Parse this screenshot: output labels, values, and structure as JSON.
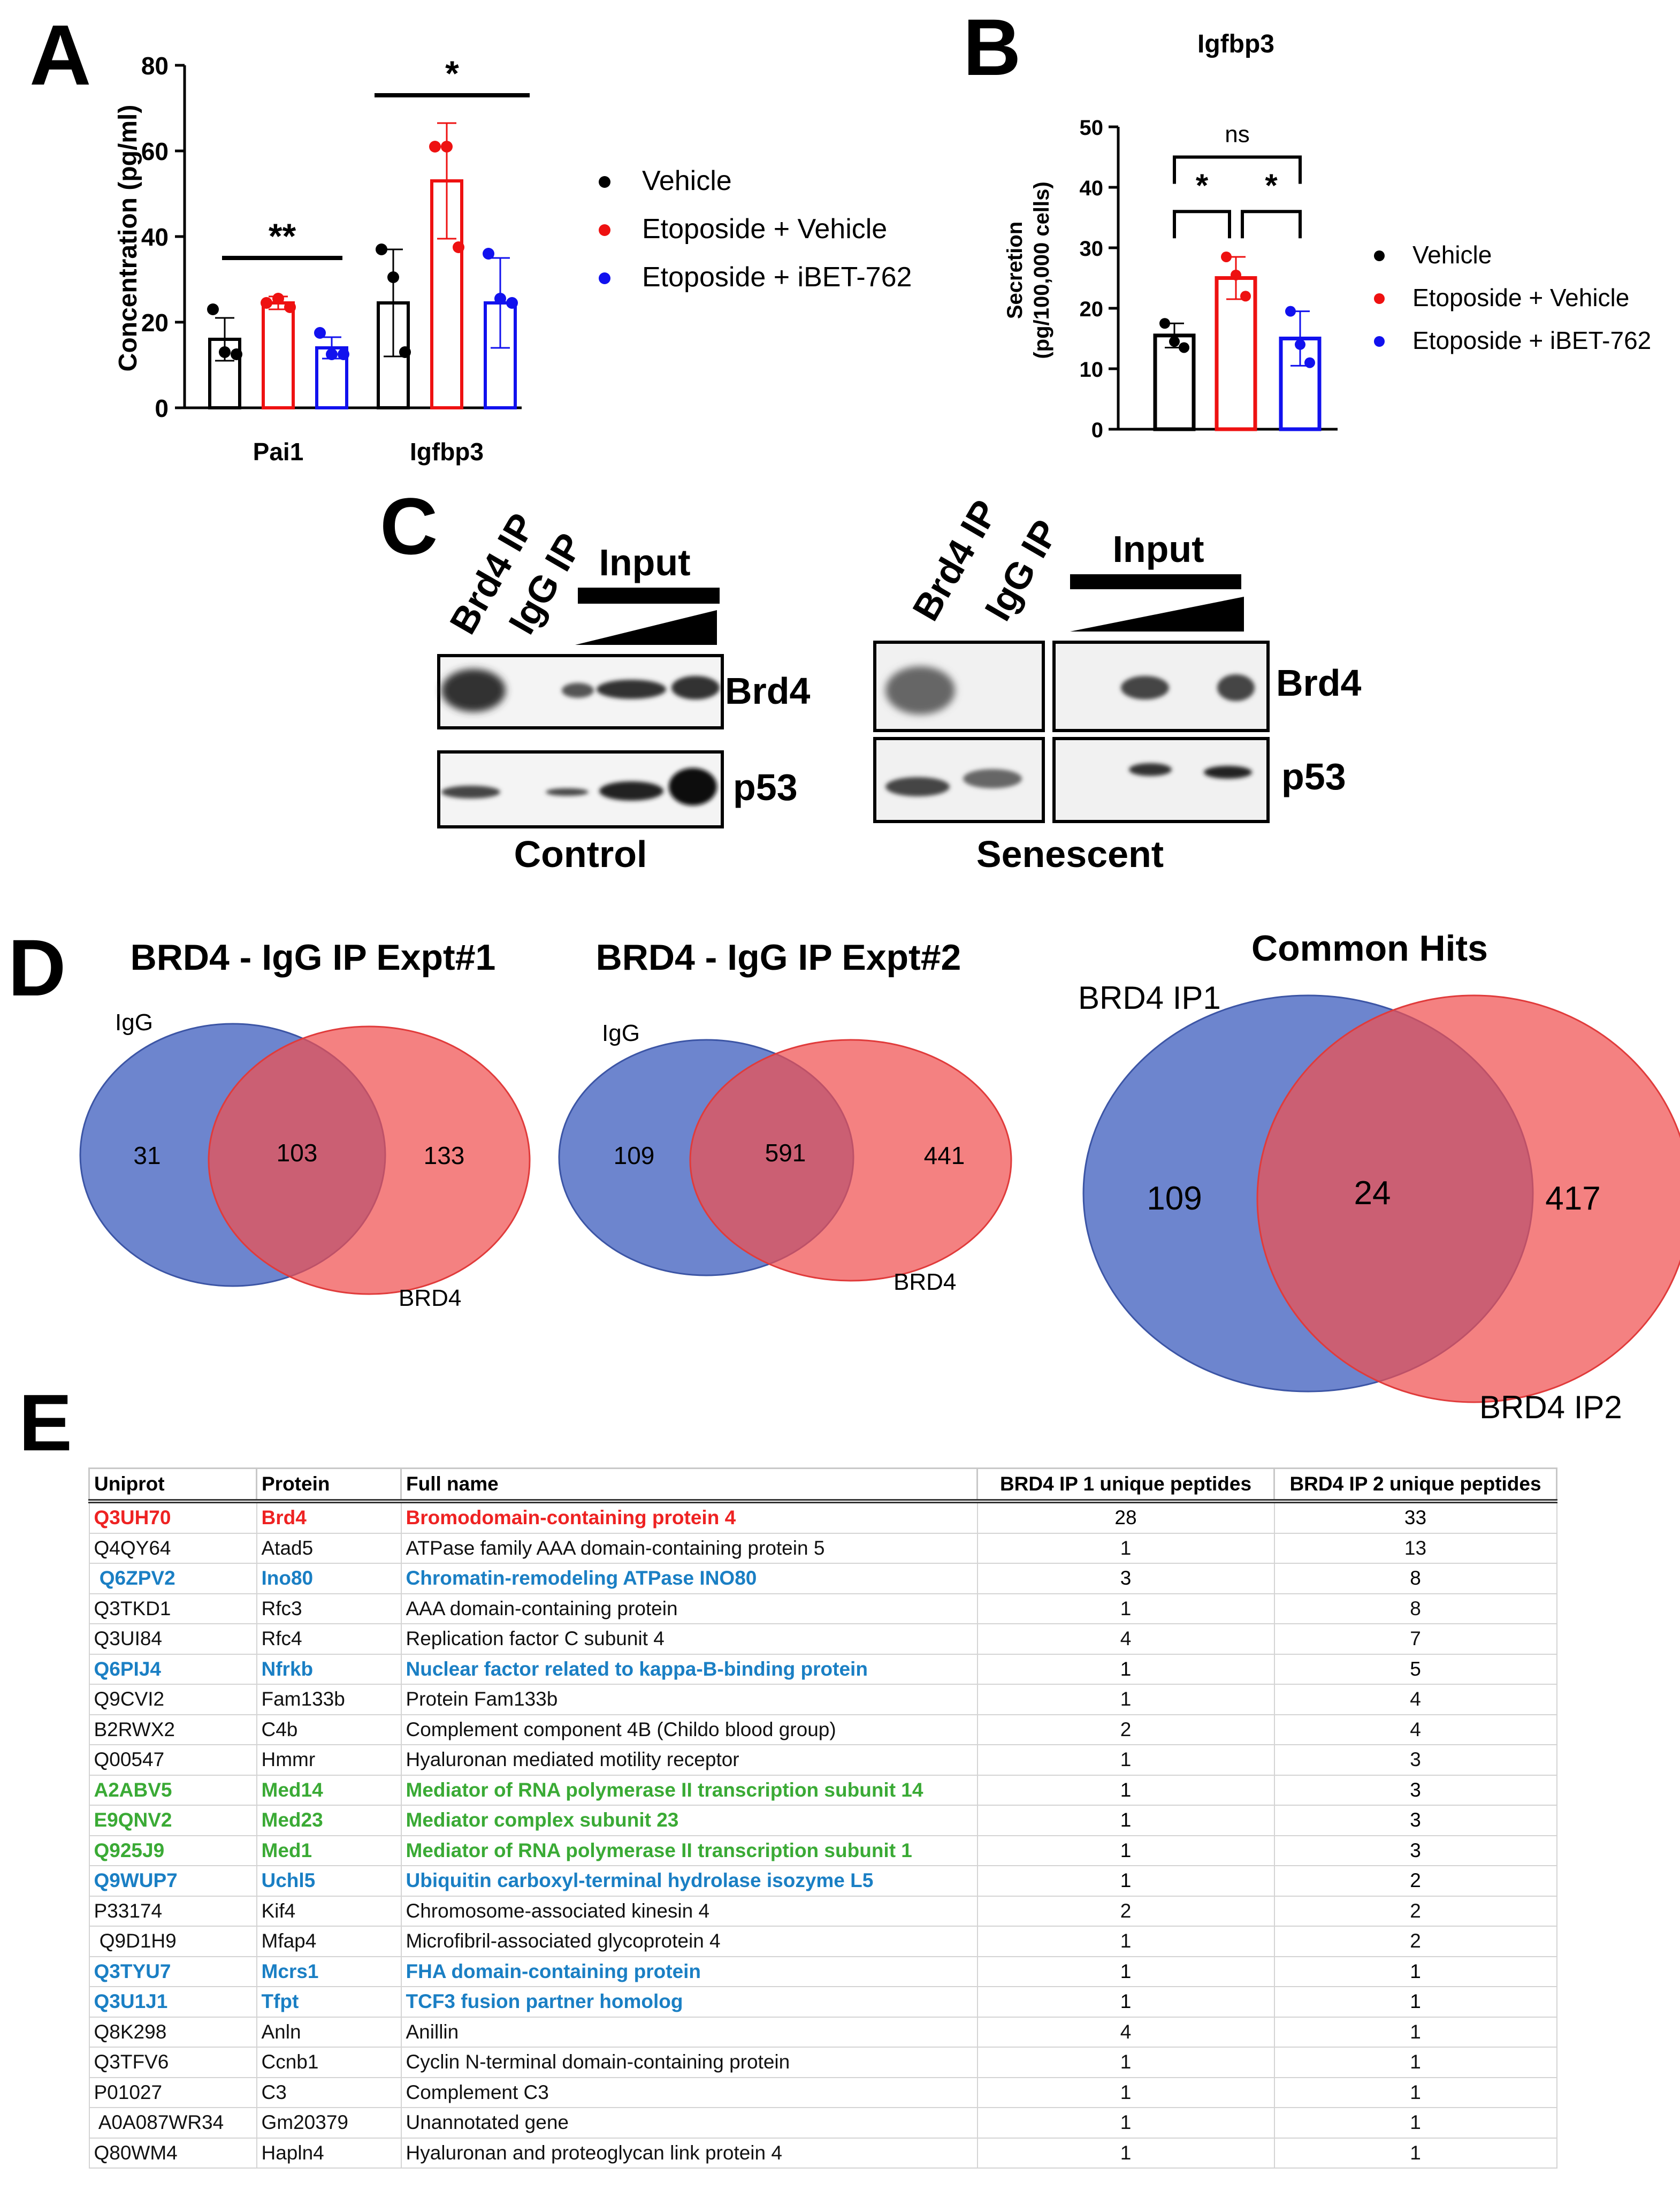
{
  "panel_labels": {
    "A": "A",
    "B": "B",
    "C": "C",
    "D": "D",
    "E": "E"
  },
  "colors": {
    "vehicle": "#000000",
    "etoposide_vehicle": "#ee1111",
    "etoposide_ibet": "#1111ee",
    "venn_blue": "#5470c6",
    "venn_red": "#f05050",
    "row_red": "#ee2222",
    "row_blue": "#1a7fc4",
    "row_green": "#3aaa35"
  },
  "legend": [
    "Vehicle",
    "Etoposide + Vehicle",
    "Etoposide + iBET-762"
  ],
  "chart_data": [
    {
      "id": "A",
      "type": "bar",
      "title": "",
      "xlabel": "",
      "ylabel": "Concentration  (pg/ml)",
      "ylim": [
        0,
        80
      ],
      "yticks": [
        "0",
        "20",
        "40",
        "60",
        "80"
      ],
      "categories": [
        "Pai1",
        "Igfbp3"
      ],
      "series": [
        {
          "name": "Vehicle",
          "values": [
            16,
            24.5
          ],
          "errors": [
            5,
            12.5
          ],
          "points": [
            [
              23,
              13,
              12.5
            ],
            [
              37,
              30.5,
              13
            ]
          ]
        },
        {
          "name": "Etoposide + Vehicle",
          "values": [
            24.5,
            53
          ],
          "errors": [
            1.5,
            13.5
          ],
          "points": [
            [
              24.5,
              25.5,
              23.5
            ],
            [
              61,
              61,
              37.5
            ]
          ]
        },
        {
          "name": "Etoposide + iBET-762",
          "values": [
            14,
            24.5
          ],
          "errors": [
            2.5,
            10.5
          ],
          "points": [
            [
              17.5,
              12.5,
              12.5
            ],
            [
              36,
              25.5,
              24.5
            ]
          ]
        }
      ],
      "significance": [
        {
          "category": "Pai1",
          "label": "**",
          "y": 35
        },
        {
          "category": "Igfbp3",
          "label": "*",
          "y": 73
        }
      ]
    },
    {
      "id": "B",
      "type": "bar",
      "title": "Igfbp3",
      "xlabel": "",
      "ylabel": "Secretion",
      "ylabel2": "(pg/100,000 cells)",
      "ylim": [
        0,
        50
      ],
      "yticks": [
        "0",
        "10",
        "20",
        "30",
        "40",
        "50"
      ],
      "categories": [
        "Vehicle",
        "Etoposide + Vehicle",
        "Etoposide + iBET-762"
      ],
      "values": [
        15.5,
        25,
        15
      ],
      "errors": [
        2,
        3.5,
        4.5
      ],
      "points": [
        [
          17.5,
          14.5,
          13.5
        ],
        [
          28.5,
          25.5,
          22
        ],
        [
          19.5,
          14,
          11
        ]
      ],
      "significance": [
        {
          "from": 0,
          "to": 1,
          "label": "*",
          "y": 36
        },
        {
          "from": 1,
          "to": 2,
          "label": "*",
          "y": 36
        },
        {
          "from": 0,
          "to": 2,
          "label": "ns",
          "y": 45
        }
      ]
    }
  ],
  "panel_c": {
    "lanes_control": [
      "Brd4 IP",
      "IgG IP"
    ],
    "lanes_senescent": [
      "Brd4 IP",
      "IgG IP"
    ],
    "input_label": "Input",
    "bands": [
      "Brd4",
      "p53"
    ],
    "group_control": "Control",
    "group_senescent": "Senescent"
  },
  "venn": [
    {
      "title": "BRD4 - IgG IP Expt#1",
      "left_label": "IgG",
      "right_label": "BRD4",
      "left_only": "31",
      "overlap": "103",
      "right_only": "133"
    },
    {
      "title": "BRD4 - IgG IP Expt#2",
      "left_label": "IgG",
      "right_label": "BRD4",
      "left_only": "109",
      "overlap": "591",
      "right_only": "441"
    },
    {
      "title": "Common Hits",
      "left_label": "BRD4 IP1",
      "right_label": "BRD4 IP2",
      "left_only": "109",
      "overlap": "24",
      "right_only": "417"
    }
  ],
  "table": {
    "headers": [
      "Uniprot",
      "Protein",
      "Full name",
      "BRD4 IP 1 unique peptides",
      "BRD4 IP 2 unique peptides"
    ],
    "rows": [
      {
        "uniprot": "Q3UH70",
        "protein": "Brd4",
        "name": "Bromodomain-containing protein 4",
        "ip1": "28",
        "ip2": "33",
        "color": "red"
      },
      {
        "uniprot": "Q4QY64",
        "protein": "Atad5",
        "name": "ATPase family AAA domain-containing protein 5",
        "ip1": "1",
        "ip2": "13",
        "color": "black"
      },
      {
        "uniprot": " Q6ZPV2",
        "protein": "Ino80",
        "name": "Chromatin-remodeling ATPase INO80",
        "ip1": "3",
        "ip2": "8",
        "color": "blue"
      },
      {
        "uniprot": "Q3TKD1",
        "protein": "Rfc3",
        "name": "AAA domain-containing protein",
        "ip1": "1",
        "ip2": "8",
        "color": "black"
      },
      {
        "uniprot": "Q3UI84",
        "protein": "Rfc4",
        "name": "Replication factor C subunit 4",
        "ip1": "4",
        "ip2": "7",
        "color": "black"
      },
      {
        "uniprot": "Q6PIJ4",
        "protein": "Nfrkb",
        "name": "Nuclear factor related to kappa-B-binding protein",
        "ip1": "1",
        "ip2": "5",
        "color": "blue"
      },
      {
        "uniprot": "Q9CVI2",
        "protein": "Fam133b",
        "name": "Protein Fam133b",
        "ip1": "1",
        "ip2": "4",
        "color": "black"
      },
      {
        "uniprot": "B2RWX2",
        "protein": "C4b",
        "name": "Complement component 4B (Childo blood group)",
        "ip1": "2",
        "ip2": "4",
        "color": "black"
      },
      {
        "uniprot": "Q00547",
        "protein": "Hmmr",
        "name": "Hyaluronan mediated motility receptor",
        "ip1": "1",
        "ip2": "3",
        "color": "black"
      },
      {
        "uniprot": "A2ABV5",
        "protein": "Med14",
        "name": "Mediator of RNA polymerase II transcription subunit 14",
        "ip1": "1",
        "ip2": "3",
        "color": "green"
      },
      {
        "uniprot": "E9QNV2",
        "protein": "Med23",
        "name": "Mediator complex subunit 23",
        "ip1": "1",
        "ip2": "3",
        "color": "green"
      },
      {
        "uniprot": "Q925J9",
        "protein": "Med1",
        "name": "Mediator of RNA polymerase II transcription subunit 1",
        "ip1": "1",
        "ip2": "3",
        "color": "green"
      },
      {
        "uniprot": "Q9WUP7",
        "protein": "Uchl5",
        "name": "Ubiquitin carboxyl-terminal hydrolase isozyme L5",
        "ip1": "1",
        "ip2": "2",
        "color": "blue"
      },
      {
        "uniprot": "P33174",
        "protein": "Kif4",
        "name": "Chromosome-associated kinesin 4",
        "ip1": "2",
        "ip2": "2",
        "color": "black"
      },
      {
        "uniprot": " Q9D1H9",
        "protein": "Mfap4",
        "name": "Microfibril-associated glycoprotein 4",
        "ip1": "1",
        "ip2": "2",
        "color": "black"
      },
      {
        "uniprot": "Q3TYU7",
        "protein": "Mcrs1",
        "name": "FHA domain-containing protein",
        "ip1": "1",
        "ip2": "1",
        "color": "blue"
      },
      {
        "uniprot": "Q3U1J1",
        "protein": "Tfpt",
        "name": "TCF3 fusion partner homolog",
        "ip1": "1",
        "ip2": "1",
        "color": "blue"
      },
      {
        "uniprot": "Q8K298",
        "protein": "Anln",
        "name": "Anillin",
        "ip1": "4",
        "ip2": "1",
        "color": "black"
      },
      {
        "uniprot": "Q3TFV6",
        "protein": "Ccnb1",
        "name": "Cyclin N-terminal domain-containing protein",
        "ip1": "1",
        "ip2": "1",
        "color": "black"
      },
      {
        "uniprot": "P01027",
        "protein": "C3",
        "name": "Complement C3",
        "ip1": "1",
        "ip2": "1",
        "color": "black"
      },
      {
        "uniprot": " A0A087WR34",
        "protein": "Gm20379",
        "name": "Unannotated gene",
        "ip1": "1",
        "ip2": "1",
        "color": "black"
      },
      {
        "uniprot": "Q80WM4",
        "protein": "Hapln4",
        "name": "Hyaluronan and proteoglycan link protein 4",
        "ip1": "1",
        "ip2": "1",
        "color": "black"
      }
    ]
  }
}
